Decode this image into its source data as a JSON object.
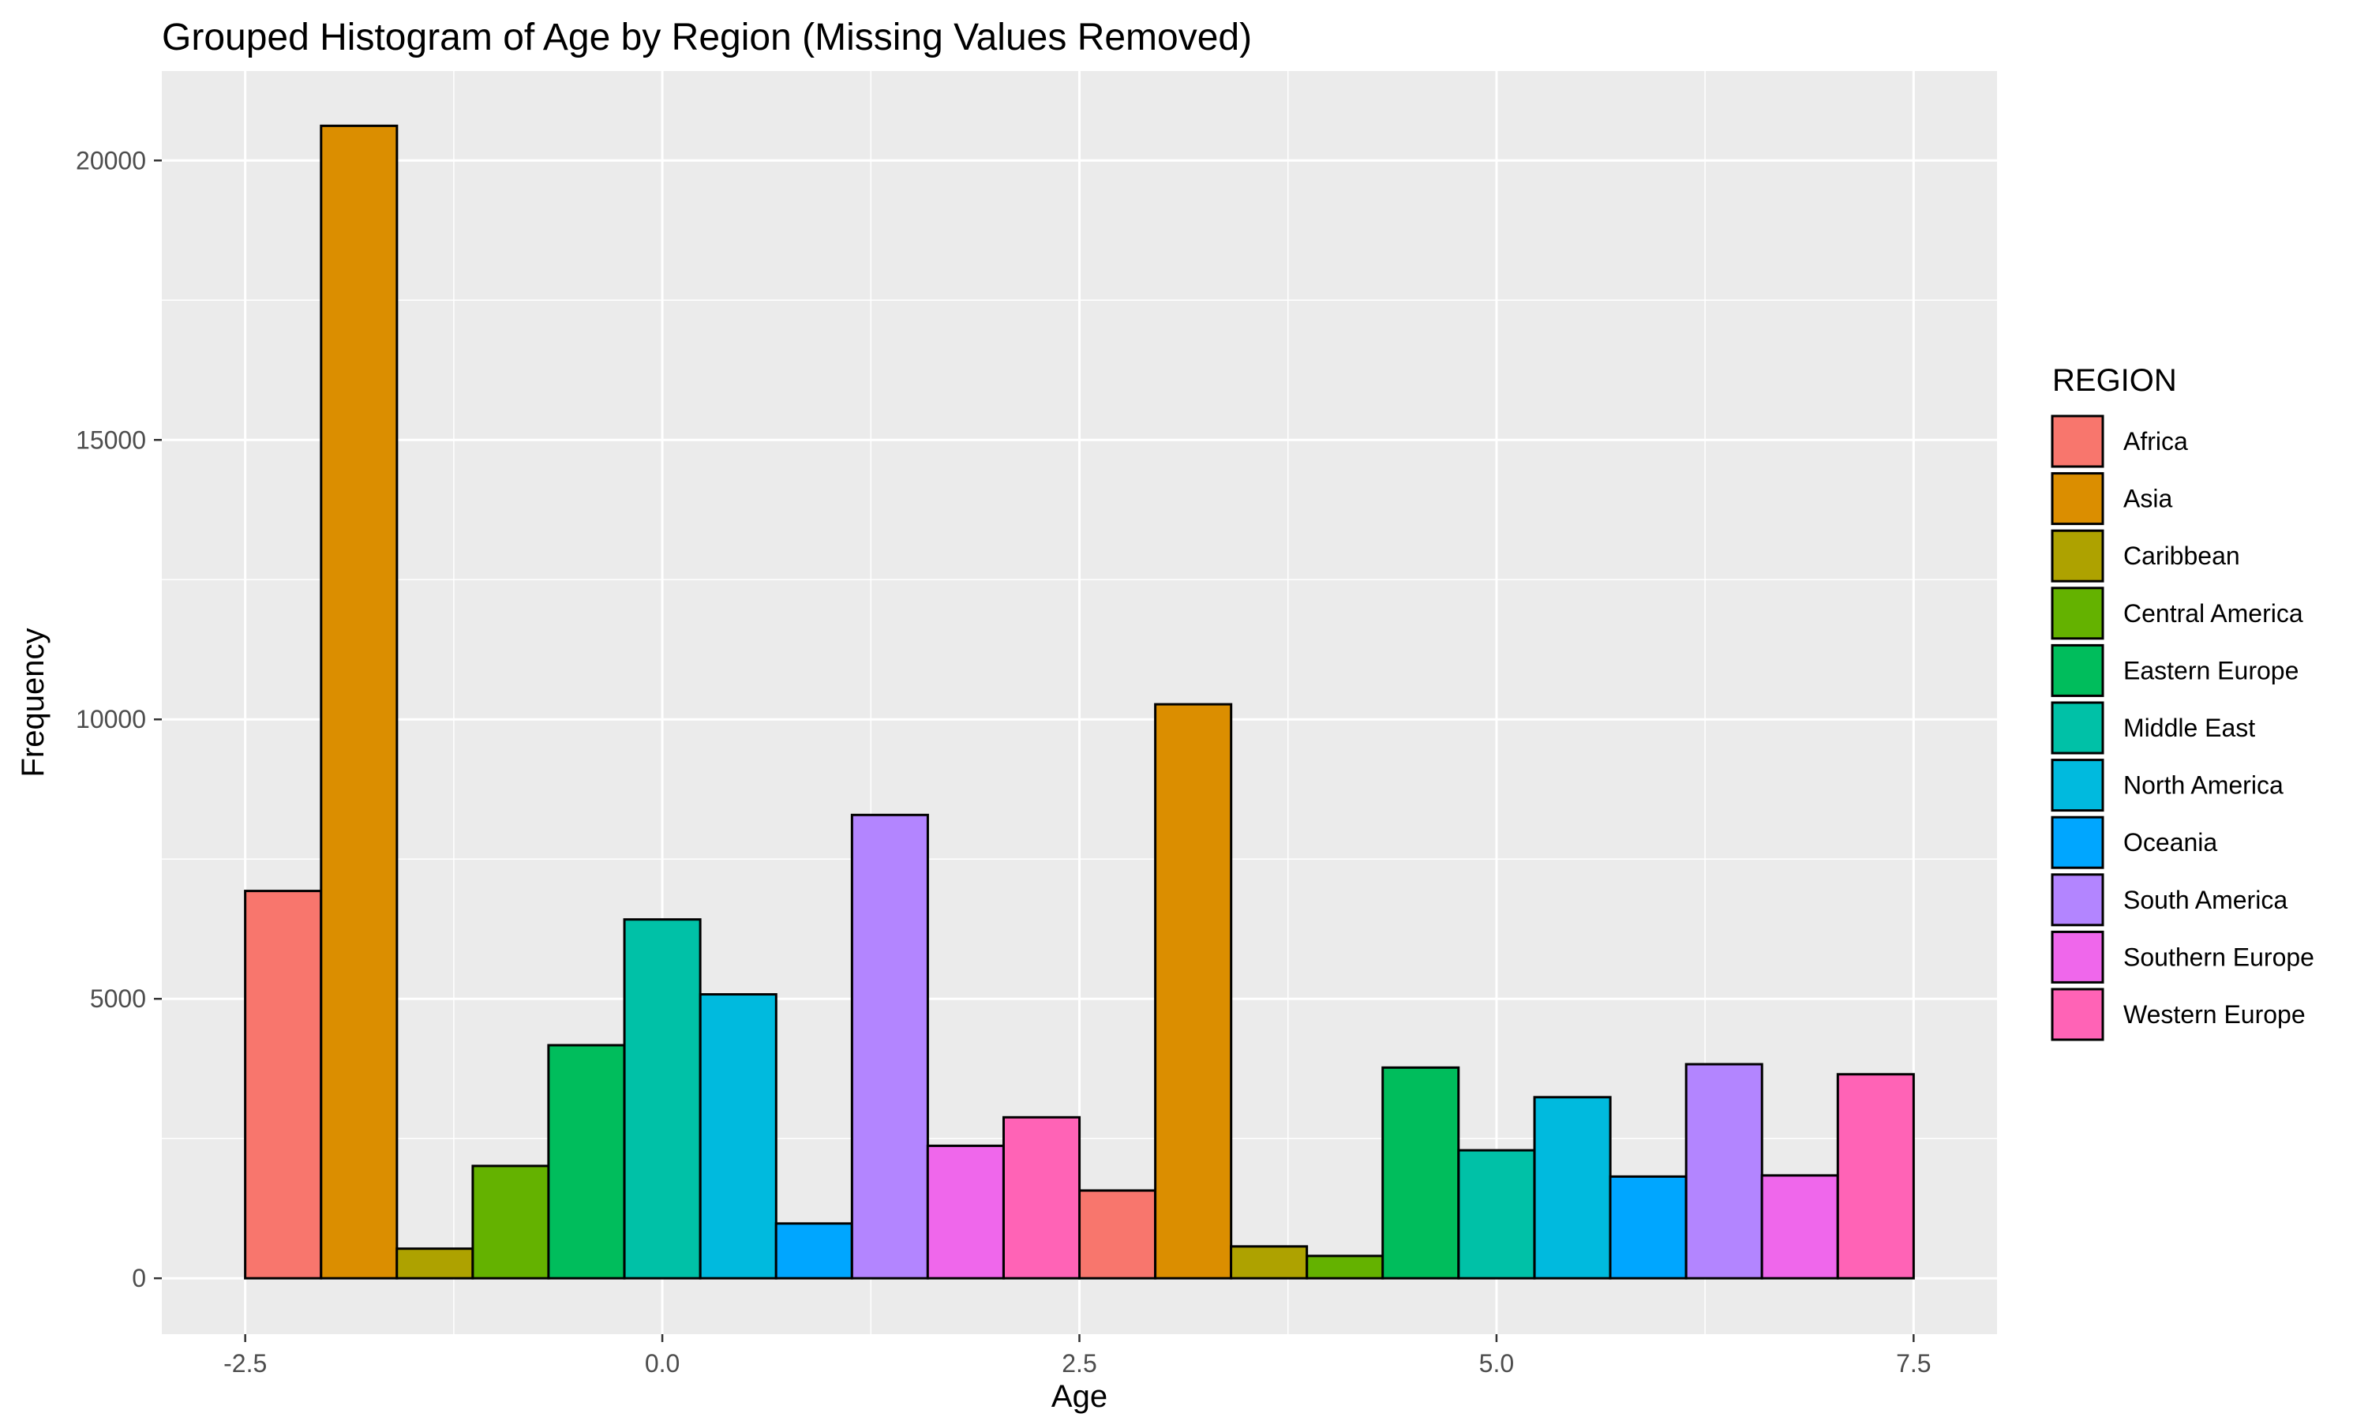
{
  "chart_data": {
    "type": "bar",
    "title": "Grouped Histogram of Age by Region (Missing Values Removed)",
    "xlabel": "Age",
    "ylabel": "Frequency",
    "xlim": [
      -3.0,
      8.0
    ],
    "ylim": [
      -1000,
      21600
    ],
    "x_ticks": [
      -2.5,
      0.0,
      2.5,
      5.0,
      7.5
    ],
    "x_tick_labels": [
      "-2.5",
      "0.0",
      "2.5",
      "5.0",
      "7.5"
    ],
    "y_ticks": [
      0,
      5000,
      10000,
      15000,
      20000
    ],
    "y_tick_labels": [
      "0",
      "5000",
      "10000",
      "15000",
      "20000"
    ],
    "grid": true,
    "legend_position": "right",
    "legend_title": "REGION",
    "bar_width": 0.4545,
    "series": [
      {
        "name": "Africa",
        "color": "#F8766D",
        "x": [
          -2.273,
          2.727
        ],
        "values": [
          6930,
          1570
        ]
      },
      {
        "name": "Asia",
        "color": "#DB8E00",
        "x": [
          -1.818,
          3.182
        ],
        "values": [
          20620,
          10270
        ]
      },
      {
        "name": "Caribbean",
        "color": "#AEA200",
        "x": [
          -1.364,
          3.636
        ],
        "values": [
          530,
          570
        ]
      },
      {
        "name": "Central America",
        "color": "#64B200",
        "x": [
          -0.909,
          4.091
        ],
        "values": [
          2010,
          400
        ]
      },
      {
        "name": "Eastern Europe",
        "color": "#00BD5C",
        "x": [
          -0.455,
          4.545
        ],
        "values": [
          4170,
          3770
        ]
      },
      {
        "name": "Middle East",
        "color": "#00C1A7",
        "x": [
          0.0,
          5.0
        ],
        "values": [
          6420,
          2290
        ]
      },
      {
        "name": "North America",
        "color": "#00BADE",
        "x": [
          0.455,
          5.455
        ],
        "values": [
          5080,
          3240
        ]
      },
      {
        "name": "Oceania",
        "color": "#00A6FF",
        "x": [
          0.909,
          5.909
        ],
        "values": [
          980,
          1820
        ]
      },
      {
        "name": "South America",
        "color": "#B385FF",
        "x": [
          1.364,
          6.364
        ],
        "values": [
          8290,
          3830
        ]
      },
      {
        "name": "Southern Europe",
        "color": "#EF67EB",
        "x": [
          1.818,
          6.818
        ],
        "values": [
          2370,
          1840
        ]
      },
      {
        "name": "Western Europe",
        "color": "#FF63B6",
        "x": [
          2.273,
          7.273
        ],
        "values": [
          2880,
          3650
        ]
      }
    ]
  }
}
